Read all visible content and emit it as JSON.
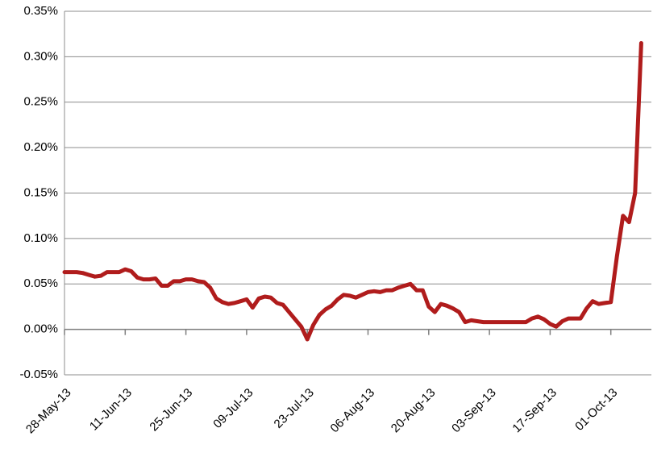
{
  "chart_data": {
    "type": "line",
    "categories": [
      "28-May-13",
      null,
      null,
      null,
      null,
      null,
      null,
      null,
      null,
      null,
      "11-Jun-13",
      null,
      null,
      null,
      null,
      null,
      null,
      null,
      null,
      null,
      "25-Jun-13",
      null,
      null,
      null,
      null,
      null,
      null,
      null,
      null,
      null,
      "09-Jul-13",
      null,
      null,
      null,
      null,
      null,
      null,
      null,
      null,
      null,
      "23-Jul-13",
      null,
      null,
      null,
      null,
      null,
      null,
      null,
      null,
      null,
      "06-Aug-13",
      null,
      null,
      null,
      null,
      null,
      null,
      null,
      null,
      null,
      "20-Aug-13",
      null,
      null,
      null,
      null,
      null,
      null,
      null,
      null,
      null,
      "03-Sep-13",
      null,
      null,
      null,
      null,
      null,
      null,
      null,
      null,
      null,
      "17-Sep-13",
      null,
      null,
      null,
      null,
      null,
      null,
      null,
      null,
      null,
      "01-Oct-13",
      null,
      null,
      null,
      null,
      null
    ],
    "series": [
      {
        "color": "#b01c1c",
        "values": [
          0.063,
          0.063,
          0.063,
          0.062,
          0.06,
          0.058,
          0.059,
          0.063,
          0.063,
          0.063,
          0.066,
          0.064,
          0.057,
          0.055,
          0.055,
          0.056,
          0.048,
          0.048,
          0.053,
          0.053,
          0.055,
          0.055,
          0.053,
          0.052,
          0.046,
          0.034,
          0.03,
          0.028,
          0.029,
          0.031,
          0.033,
          0.024,
          0.034,
          0.036,
          0.035,
          0.029,
          0.027,
          0.019,
          0.011,
          0.003,
          -0.011,
          0.005,
          0.016,
          0.022,
          0.026,
          0.033,
          0.038,
          0.037,
          0.035,
          0.038,
          0.041,
          0.042,
          0.041,
          0.043,
          0.043,
          0.046,
          0.048,
          0.05,
          0.043,
          0.043,
          0.025,
          0.019,
          0.028,
          0.026,
          0.023,
          0.019,
          0.008,
          0.01,
          0.009,
          0.008,
          0.008,
          0.008,
          0.008,
          0.008,
          0.008,
          0.008,
          0.008,
          0.012,
          0.014,
          0.011,
          0.006,
          0.003,
          0.009,
          0.012,
          0.012,
          0.012,
          0.023,
          0.031,
          0.028,
          0.029,
          0.03,
          0.08,
          0.125,
          0.118,
          0.15,
          0.315
        ]
      }
    ],
    "ylim": [
      -0.05,
      0.35
    ],
    "yticks": [
      {
        "value": -0.05,
        "label": "-0.05%"
      },
      {
        "value": 0,
        "label": "0.00%"
      },
      {
        "value": 0.05,
        "label": "0.05%"
      },
      {
        "value": 0.1,
        "label": "0.10%"
      },
      {
        "value": 0.15,
        "label": "0.15%"
      },
      {
        "value": 0.2,
        "label": "0.20%"
      },
      {
        "value": 0.25,
        "label": "0.25%"
      },
      {
        "value": 0.3,
        "label": "0.30%"
      },
      {
        "value": 0.35,
        "label": "0.35%"
      }
    ],
    "grid": true
  }
}
